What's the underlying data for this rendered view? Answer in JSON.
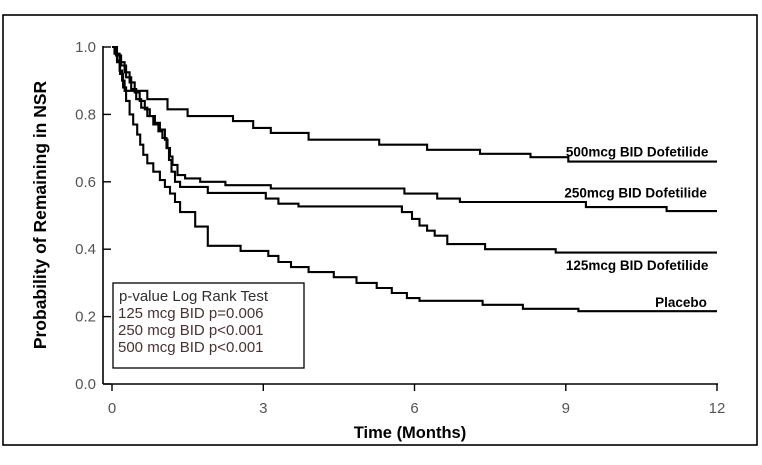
{
  "figure": {
    "y_axis_title": "Probability of Remaining in NSR",
    "x_axis_title": "Time (Months)"
  },
  "pvalue_box": {
    "title": "p-value Log Rank Test",
    "lines": [
      "125 mcg BID p=0.006",
      "250 mcg BID p<0.001",
      "500 mcg BID p<0.001"
    ]
  },
  "colors": {
    "curve": "#000000",
    "axis": "#000000",
    "border": "#000000",
    "tick_label": "#545454",
    "axis_title": "#000000",
    "series_label": "#000000",
    "pvalue_title": "#2f2f2f",
    "pvalue_lines": "#4a3232",
    "pvalue_border": "#000000"
  },
  "chart_data": {
    "type": "line",
    "subtype": "kaplan-meier-step",
    "title": "",
    "xlabel": "Time (Months)",
    "ylabel": "Probability of Remaining in NSR",
    "xlim": [
      0,
      12
    ],
    "ylim": [
      0.0,
      1.0
    ],
    "x_tick_values": [
      0,
      3,
      6,
      9,
      12
    ],
    "x_tick_labels": [
      "0",
      "3",
      "6",
      "9",
      "12"
    ],
    "y_tick_values": [
      0.0,
      0.2,
      0.4,
      0.6,
      0.8,
      1.0
    ],
    "y_tick_labels": [
      "0.0",
      "0.2",
      "0.4",
      "0.6",
      "0.8",
      "1.0"
    ],
    "grid": false,
    "legend_position": "curve-end-labels-right",
    "series": [
      {
        "name": "500mcg BID Dofetilide",
        "label_t": 11.83,
        "label_p": 0.675,
        "steps": [
          [
            0,
            1.0
          ],
          [
            0.05,
            0.98
          ],
          [
            0.1,
            0.955
          ],
          [
            0.15,
            0.93
          ],
          [
            0.2,
            0.9
          ],
          [
            0.25,
            0.87
          ],
          [
            0.7,
            0.845
          ],
          [
            1.1,
            0.815
          ],
          [
            1.5,
            0.795
          ],
          [
            2.4,
            0.78
          ],
          [
            2.8,
            0.76
          ],
          [
            3.15,
            0.745
          ],
          [
            3.9,
            0.725
          ],
          [
            5.3,
            0.71
          ],
          [
            6.25,
            0.695
          ],
          [
            7.3,
            0.683
          ],
          [
            8.3,
            0.673
          ],
          [
            9.05,
            0.66
          ]
        ]
      },
      {
        "name": "250mcg BID Dofetilide",
        "label_t": 11.8,
        "label_p": 0.553,
        "steps": [
          [
            0,
            1.0
          ],
          [
            0.07,
            0.98
          ],
          [
            0.15,
            0.955
          ],
          [
            0.25,
            0.925
          ],
          [
            0.35,
            0.895
          ],
          [
            0.45,
            0.865
          ],
          [
            0.55,
            0.84
          ],
          [
            0.65,
            0.815
          ],
          [
            0.75,
            0.795
          ],
          [
            0.85,
            0.775
          ],
          [
            0.95,
            0.755
          ],
          [
            1.05,
            0.725
          ],
          [
            1.1,
            0.7
          ],
          [
            1.15,
            0.675
          ],
          [
            1.2,
            0.65
          ],
          [
            1.3,
            0.62
          ],
          [
            1.45,
            0.61
          ],
          [
            1.75,
            0.6
          ],
          [
            2.25,
            0.59
          ],
          [
            3.15,
            0.58
          ],
          [
            5.8,
            0.565
          ],
          [
            6.45,
            0.55
          ],
          [
            6.9,
            0.54
          ],
          [
            9.4,
            0.525
          ],
          [
            11.0,
            0.513
          ]
        ]
      },
      {
        "name": "125mcg BID Dofetilide",
        "label_t": 11.83,
        "label_p": 0.338,
        "steps": [
          [
            0,
            1.0
          ],
          [
            0.08,
            0.975
          ],
          [
            0.18,
            0.945
          ],
          [
            0.28,
            0.91
          ],
          [
            0.38,
            0.875
          ],
          [
            0.48,
            0.845
          ],
          [
            0.58,
            0.82
          ],
          [
            0.7,
            0.795
          ],
          [
            0.82,
            0.77
          ],
          [
            0.92,
            0.75
          ],
          [
            1.0,
            0.73
          ],
          [
            1.08,
            0.7
          ],
          [
            1.13,
            0.665
          ],
          [
            1.18,
            0.63
          ],
          [
            1.25,
            0.6
          ],
          [
            1.35,
            0.585
          ],
          [
            1.9,
            0.567
          ],
          [
            3.05,
            0.55
          ],
          [
            3.3,
            0.535
          ],
          [
            3.7,
            0.527
          ],
          [
            5.75,
            0.51
          ],
          [
            5.95,
            0.49
          ],
          [
            6.1,
            0.47
          ],
          [
            6.25,
            0.455
          ],
          [
            6.4,
            0.44
          ],
          [
            6.65,
            0.415
          ],
          [
            7.4,
            0.4
          ],
          [
            8.8,
            0.39
          ]
        ]
      },
      {
        "name": "Placebo",
        "label_t": 11.8,
        "label_p": 0.229,
        "steps": [
          [
            0,
            1.0
          ],
          [
            0.1,
            0.96
          ],
          [
            0.16,
            0.92
          ],
          [
            0.22,
            0.88
          ],
          [
            0.28,
            0.84
          ],
          [
            0.35,
            0.8
          ],
          [
            0.42,
            0.77
          ],
          [
            0.5,
            0.74
          ],
          [
            0.56,
            0.71
          ],
          [
            0.62,
            0.68
          ],
          [
            0.7,
            0.655
          ],
          [
            0.82,
            0.63
          ],
          [
            0.95,
            0.605
          ],
          [
            1.05,
            0.585
          ],
          [
            1.15,
            0.565
          ],
          [
            1.25,
            0.54
          ],
          [
            1.35,
            0.51
          ],
          [
            1.65,
            0.467
          ],
          [
            1.9,
            0.41
          ],
          [
            2.55,
            0.395
          ],
          [
            3.1,
            0.38
          ],
          [
            3.3,
            0.362
          ],
          [
            3.55,
            0.347
          ],
          [
            3.9,
            0.332
          ],
          [
            4.4,
            0.317
          ],
          [
            4.85,
            0.3
          ],
          [
            5.25,
            0.285
          ],
          [
            5.55,
            0.27
          ],
          [
            5.85,
            0.255
          ],
          [
            6.1,
            0.247
          ],
          [
            7.35,
            0.235
          ],
          [
            8.15,
            0.223
          ],
          [
            9.25,
            0.216
          ]
        ]
      }
    ]
  }
}
